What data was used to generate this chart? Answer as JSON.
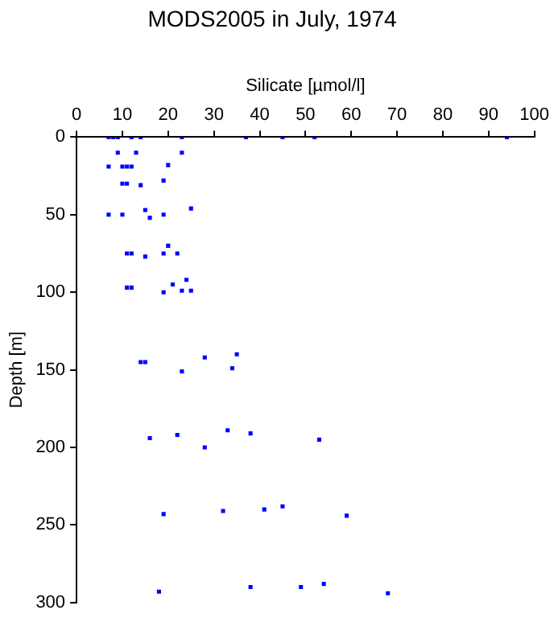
{
  "chart_data": {
    "type": "scatter",
    "title": "MODS2005 in July, 1974",
    "xlabel": "Silicate [µmol/l]",
    "ylabel": "Depth [m]",
    "marker": "square",
    "grid": false,
    "legend": false,
    "xlim": [
      0,
      100
    ],
    "xticks": [
      0,
      10,
      20,
      30,
      40,
      50,
      60,
      70,
      80,
      90,
      100
    ],
    "ylim": [
      300,
      0
    ],
    "yticks": [
      0,
      50,
      100,
      150,
      200,
      250,
      300
    ],
    "series": [
      {
        "color": "#0000ff",
        "x": [
          7,
          8,
          9,
          12,
          14,
          23,
          37,
          45,
          52,
          94,
          9,
          13,
          23,
          7,
          10,
          11,
          12,
          20,
          10,
          11,
          14,
          19,
          7,
          10,
          15,
          16,
          19,
          25,
          11,
          12,
          15,
          19,
          20,
          22,
          11,
          12,
          19,
          21,
          23,
          24,
          25,
          14,
          15,
          23,
          28,
          35,
          34,
          16,
          22,
          28,
          33,
          38,
          53,
          19,
          32,
          41,
          45,
          59,
          18,
          38,
          49,
          54,
          68
        ],
        "values": [
          0,
          0,
          0,
          0,
          0,
          0,
          0,
          0,
          0,
          0,
          10,
          10,
          10,
          19,
          19,
          19,
          19,
          18,
          30,
          30,
          31,
          28,
          50,
          50,
          47,
          52,
          50,
          46,
          75,
          75,
          77,
          75,
          70,
          75,
          97,
          97,
          100,
          95,
          99,
          92,
          99,
          145,
          145,
          151,
          142,
          140,
          149,
          194,
          192,
          200,
          189,
          191,
          195,
          243,
          241,
          240,
          238,
          244,
          293,
          290,
          290,
          288,
          294
        ]
      }
    ]
  }
}
